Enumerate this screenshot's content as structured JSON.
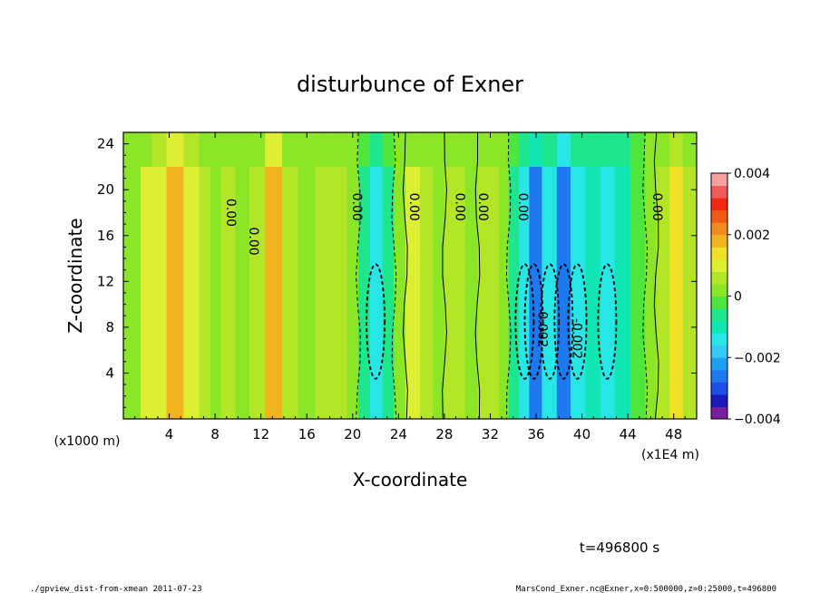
{
  "chart_data": {
    "type": "heatmap",
    "title": "disturbunce of Exner",
    "xlabel": "X-coordinate",
    "ylabel": "Z-coordinate",
    "x_unit_left": "(x1000 m)",
    "x_unit_right": "(x1E4 m)",
    "xlim": [
      0,
      50
    ],
    "ylim": [
      0,
      25
    ],
    "x_ticks": [
      "4",
      "8",
      "12",
      "16",
      "20",
      "24",
      "28",
      "32",
      "36",
      "40",
      "44",
      "48"
    ],
    "x_tick_values": [
      4,
      8,
      12,
      16,
      20,
      24,
      28,
      32,
      36,
      40,
      44,
      48
    ],
    "y_ticks": [
      "4",
      "8",
      "12",
      "16",
      "20",
      "24"
    ],
    "y_tick_values": [
      4,
      8,
      12,
      16,
      20,
      24
    ],
    "colorbar": {
      "min": -0.004,
      "max": 0.004,
      "tick_labels": [
        "0.004",
        "0.002",
        "0",
        "−0.002",
        "−0.004"
      ],
      "tick_values": [
        0.004,
        0.002,
        0,
        -0.002,
        -0.004
      ],
      "colors": [
        "#7a1ea0",
        "#1a1ab8",
        "#1e50e6",
        "#1e78f0",
        "#1ea0f0",
        "#38c8f8",
        "#28e6e6",
        "#10e6b4",
        "#1ee68c",
        "#4ee63c",
        "#8ce628",
        "#b4e628",
        "#dcef30",
        "#f0e028",
        "#f0b41e",
        "#f08c1e",
        "#f05a14",
        "#f02814",
        "#f05a5a",
        "#f8a0a0"
      ]
    },
    "contour_labels": [
      {
        "text": "0.00",
        "x": 9.0,
        "z": 18.0
      },
      {
        "text": "0.00",
        "x": 11.0,
        "z": 15.5
      },
      {
        "text": "0.00",
        "x": 20.0,
        "z": 18.5
      },
      {
        "text": "0.00",
        "x": 25.0,
        "z": 18.5
      },
      {
        "text": "0.00",
        "x": 29.0,
        "z": 18.5
      },
      {
        "text": "0.00",
        "x": 31.0,
        "z": 18.5
      },
      {
        "text": "0.00",
        "x": 34.5,
        "z": 18.5
      },
      {
        "text": "0.00",
        "x": 46.2,
        "z": 18.5
      },
      {
        "text": "-0.002",
        "x": 36.2,
        "z": 8.0
      },
      {
        "text": "-0.002",
        "x": 39.2,
        "z": 7.0
      }
    ],
    "field_columns": [
      {
        "x": 0.0,
        "v": 0.0
      },
      {
        "x": 1.0,
        "v": 0.0003
      },
      {
        "x": 2.0,
        "v": 0.0008
      },
      {
        "x": 3.0,
        "v": 0.001
      },
      {
        "x": 4.5,
        "v": 0.0018
      },
      {
        "x": 6.0,
        "v": 0.001
      },
      {
        "x": 7.2,
        "v": 0.0004
      },
      {
        "x": 8.0,
        "v": 0.0002
      },
      {
        "x": 9.0,
        "v": 0.0004
      },
      {
        "x": 10.5,
        "v": 0.0002
      },
      {
        "x": 11.5,
        "v": 0.0006
      },
      {
        "x": 13.2,
        "v": 0.0019
      },
      {
        "x": 14.5,
        "v": 0.0006
      },
      {
        "x": 16.0,
        "v": 0.0002
      },
      {
        "x": 17.5,
        "v": 0.0005
      },
      {
        "x": 19.0,
        "v": 0.0006
      },
      {
        "x": 20.0,
        "v": 0.0
      },
      {
        "x": 21.0,
        "v": -0.0008
      },
      {
        "x": 22.0,
        "v": -0.0016
      },
      {
        "x": 23.2,
        "v": -0.0008
      },
      {
        "x": 24.0,
        "v": 0.0
      },
      {
        "x": 25.2,
        "v": 0.0008
      },
      {
        "x": 26.5,
        "v": 0.0006
      },
      {
        "x": 27.5,
        "v": 0.0
      },
      {
        "x": 28.5,
        "v": 0.0006
      },
      {
        "x": 29.3,
        "v": 0.0004
      },
      {
        "x": 30.3,
        "v": 0.0
      },
      {
        "x": 31.5,
        "v": 0.0004
      },
      {
        "x": 32.3,
        "v": 0.0006
      },
      {
        "x": 33.2,
        "v": 0.0
      },
      {
        "x": 34.0,
        "v": -0.0008
      },
      {
        "x": 35.0,
        "v": -0.0016
      },
      {
        "x": 35.8,
        "v": -0.0026
      },
      {
        "x": 37.2,
        "v": -0.0016
      },
      {
        "x": 38.4,
        "v": -0.0028
      },
      {
        "x": 39.6,
        "v": -0.0016
      },
      {
        "x": 41.0,
        "v": -0.0012
      },
      {
        "x": 42.2,
        "v": -0.0016
      },
      {
        "x": 43.5,
        "v": -0.001
      },
      {
        "x": 45.0,
        "v": -0.0004
      },
      {
        "x": 46.0,
        "v": 0.0
      },
      {
        "x": 47.0,
        "v": 0.0006
      },
      {
        "x": 48.3,
        "v": 0.0014
      },
      {
        "x": 49.3,
        "v": 0.0006
      },
      {
        "x": 50.0,
        "v": 0.0004
      }
    ]
  },
  "annotations": {
    "time_label": "t=496800 s",
    "footer_left": "./gpview_dist-from-xmean  2011-07-23",
    "footer_right": "MarsCond_Exner.nc@Exner,x=0:500000,z=0:25000,t=496800"
  }
}
